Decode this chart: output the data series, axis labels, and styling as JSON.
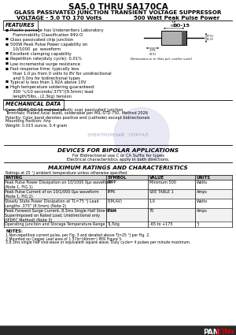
{
  "title": "SA5.0 THRU SA170CA",
  "subtitle1": "GLASS PASSIVATED JUNCTION TRANSIENT VOLTAGE SUPPRESSOR",
  "subtitle2_left": "VOLTAGE - 5.0 TO 170 Volts",
  "subtitle2_right": "500 Watt Peak Pulse Power",
  "bg_color": "#ffffff",
  "features_title": "FEATURES",
  "feature_items": [
    "Plastic package has Underwriters Laboratory\n  Flammability Classification 94V-O",
    "Glass passivated chip junction",
    "500W Peak Pulse Power capability on\n  10/1000  μs  waveform",
    "Excellent clamping capability",
    "Repetition rate(duty cycle): 0.01%",
    "Low incremental surge resistance",
    "Fast response time: typically less\n  than 1.0 ps from 0 volts to 8V for unidirectional\n  and 5.0ns for bidirectional types",
    "Typical ly less than 1.92A above 10V",
    "High temperature soldering guaranteed:\n  300 °c/10 seconds/.375\"/(9.5mm) lead\n  length/5lbs., (2.3kg) tension"
  ],
  "package_label": "DO-15",
  "dim_note": "Dimensions in in (See pol. confire s.are)",
  "mech_title": "MECHANICAL DATA",
  "mech_lines": [
    "Case: JEDEC DO-15 molded plastic over passivated junction",
    "Terminals: Plated Axial leads, solderable per MIL-STD-750, Method 2026",
    "Polarity: Color band denotes positive end (cathode) except bidirectionals",
    "Mounting Position: Any",
    "Weight: 0.015 ounce, 0.4 gram"
  ],
  "watermark_text": "ЭЛЕКТРОННЫЙ   ПОРТАЛ",
  "bipolar_title": "DEVICES FOR BIPOLAR APPLICATIONS",
  "bipolar_line1": "For Bidirectional use C or CA Suffix for types",
  "bipolar_line2": "Electrical characteristics apply in both directions.",
  "table_title": "MAXIMUM RATINGS AND CHARACTERISTICS",
  "table_note_pre": "Ratings at 25 °J ambient temperature unless otherwise specified.",
  "table_headers": [
    "RATING",
    "SYMBOL",
    "VALUE",
    "UNITS"
  ],
  "table_col_starts": [
    5,
    135,
    188,
    248
  ],
  "table_rows": [
    [
      "Peak Pulse Power Dissipation on 10/1000 0μs waveform\n(Note 1, FIG.1)",
      "PPPP",
      "Minimum 500",
      "Watts"
    ],
    [
      "Peak Pulse Current of on 10/1/000 0μs waveform\n(Note 1, FIG.2)",
      "IPPK",
      "SEE TABLE 1",
      "Amps"
    ],
    [
      "Steady State Power Dissipation at TL=75 °J Lead\nLengths .375\" (9.5mm) (Note 2)",
      "P(M,AV)",
      "1.0",
      "Watts"
    ],
    [
      "Peak Forward Surge Current, 8.3ms Single Half Sine-Wave\nSuperimposed on Rated Load, Unidirectional only\n(JEDEC Method) (Note 3)",
      "IFSM",
      "70",
      "Amps"
    ],
    [
      "Operating Junction and Storage Temperature Range",
      "TJ,Tstg",
      "-65 to +175",
      "°J"
    ]
  ],
  "notes_title": "NOTES:",
  "notes": [
    "1.Non-repetitive current pulse, per Fig. 3 and derated above TJ=25 °J per Fig. 2.",
    "2.Mounted on Copper Leaf area of 1.57in²(40mm²) PER Figure 5.",
    "3.8.3ms single half sine-wave or equivalent square wave, Duty cycle= 4 pulses per minute maximum."
  ],
  "footer_color": "#2a2a2a",
  "logo_pan": "PAN",
  "logo_jit": "JIT",
  "logo_color_pan": "#ffffff",
  "logo_color_jit": "#cc0000"
}
